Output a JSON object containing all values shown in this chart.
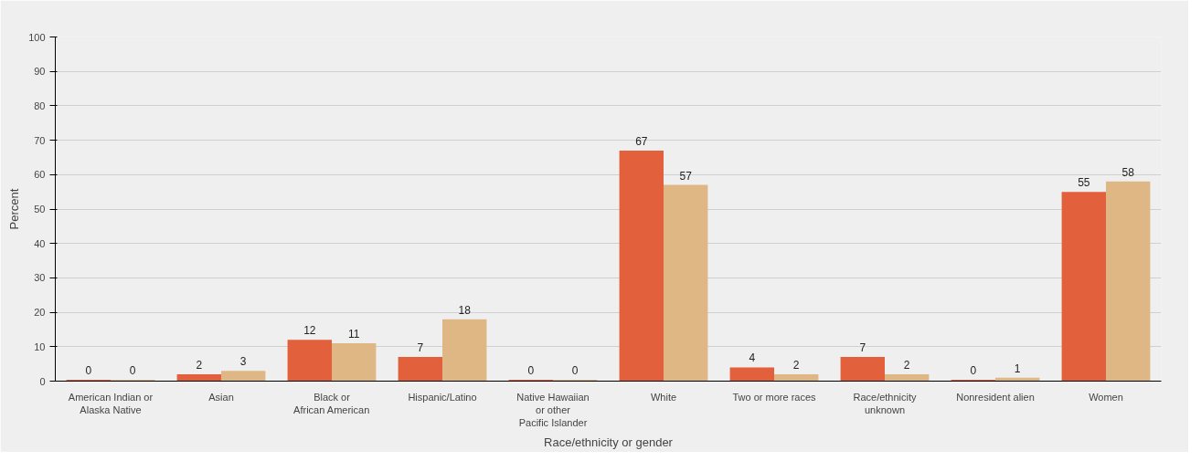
{
  "chart_data": {
    "type": "bar",
    "xlabel": "Race/ethnicity or gender",
    "ylabel": "Percent",
    "categories": [
      "American Indian or\nAlaska Native",
      "Asian",
      "Black or\nAfrican American",
      "Hispanic/Latino",
      "Native Hawaiian\nor other\nPacific Islander",
      "White",
      "Two or more races",
      "Race/ethnicity\nunknown",
      "Nonresident alien",
      "Women"
    ],
    "series": [
      {
        "color": "#e2603c",
        "values": [
          0.4,
          2,
          12,
          7,
          0.4,
          67,
          4,
          7,
          0.4,
          55
        ],
        "value_labels": [
          "0",
          "2",
          "12",
          "7",
          "0",
          "67",
          "4",
          "7",
          "0",
          "55"
        ]
      },
      {
        "color": "#dfb784",
        "values": [
          0.4,
          3,
          11,
          18,
          0.4,
          57,
          2,
          2,
          1,
          58
        ],
        "value_labels": [
          "0",
          "3",
          "11",
          "18",
          "0",
          "57",
          "2",
          "2",
          "1",
          "58"
        ]
      }
    ],
    "ylim": [
      0,
      100
    ],
    "yticks": [
      0,
      10,
      20,
      30,
      40,
      50,
      60,
      70,
      80,
      90,
      100
    ],
    "grid": "y"
  }
}
